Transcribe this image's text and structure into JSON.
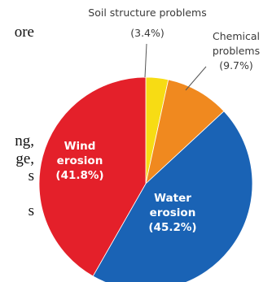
{
  "page_fragments": [
    "ore",
    "ng,",
    "ge,",
    "s",
    "s"
  ],
  "chart_data": {
    "type": "pie",
    "categories": [
      "Soil structure problems",
      "Chemical problems",
      "Water erosion",
      "Wind erosion"
    ],
    "values": [
      3.4,
      9.7,
      45.2,
      41.8
    ],
    "value_labels": [
      "(3.4%)",
      "(9.7%)",
      "(45.2%)",
      "(41.8%)"
    ],
    "label_lines": [
      [
        "Soil structure problems"
      ],
      [
        "Chemical",
        "problems"
      ],
      [
        "Water",
        "erosion"
      ],
      [
        "Wind",
        "erosion"
      ]
    ],
    "colors": [
      "#f7dc14",
      "#f0891f",
      "#1a63b5",
      "#e4202a"
    ],
    "start_angle_deg": 0,
    "direction": "clockwise"
  }
}
